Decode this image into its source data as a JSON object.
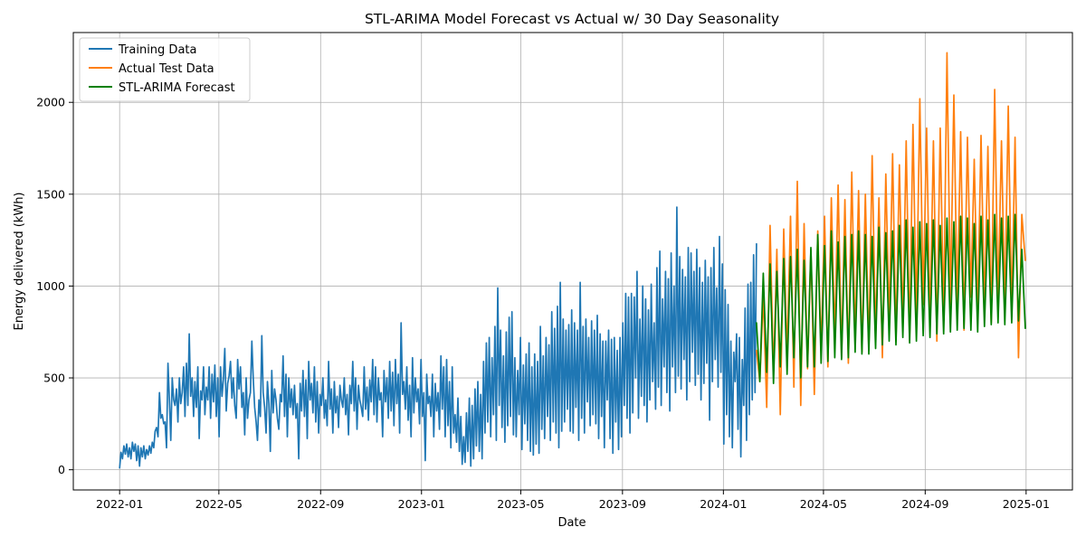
{
  "chart_data": {
    "type": "line",
    "title": "STL-ARIMA Model Forecast vs Actual w/ 30 Day Seasonality",
    "xlabel": "Date",
    "ylabel": "Energy delivered (kWh)",
    "x_type": "date",
    "xlim": [
      "2021-11-06",
      "2025-02-26"
    ],
    "ylim": [
      -110,
      2380
    ],
    "grid": true,
    "legend_position": "top-left",
    "x_ticks": [
      "2022-01",
      "2022-05",
      "2022-09",
      "2023-01",
      "2023-05",
      "2023-09",
      "2024-01",
      "2024-05",
      "2024-09",
      "2025-01"
    ],
    "y_ticks": [
      0,
      500,
      1000,
      1500,
      2000
    ],
    "series": [
      {
        "name": "Training Data",
        "color": "#1f77b4",
        "x_start": "2022-01-01",
        "x_end": "2024-02-10",
        "values": [
          10,
          95,
          60,
          130,
          85,
          140,
          70,
          120,
          60,
          150,
          100,
          140,
          50,
          130,
          20,
          120,
          70,
          130,
          60,
          110,
          80,
          130,
          90,
          150,
          120,
          210,
          230,
          180,
          420,
          280,
          300,
          250,
          260,
          120,
          580,
          380,
          160,
          500,
          380,
          350,
          440,
          260,
          500,
          360,
          420,
          560,
          290,
          580,
          350,
          740,
          400,
          500,
          290,
          480,
          340,
          560,
          170,
          430,
          380,
          560,
          300,
          450,
          380,
          560,
          280,
          520,
          370,
          570,
          290,
          500,
          180,
          560,
          400,
          490,
          660,
          320,
          470,
          510,
          590,
          390,
          500,
          350,
          280,
          600,
          440,
          560,
          340,
          420,
          190,
          500,
          280,
          380,
          420,
          700,
          500,
          340,
          260,
          160,
          380,
          290,
          730,
          420,
          340,
          200,
          480,
          360,
          100,
          540,
          310,
          440,
          380,
          280,
          220,
          410,
          370,
          620,
          290,
          520,
          180,
          500,
          340,
          440,
          300,
          460,
          280,
          360,
          60,
          470,
          320,
          540,
          290,
          490,
          170,
          590,
          380,
          470,
          310,
          560,
          260,
          480,
          200,
          410,
          350,
          500,
          280,
          380,
          240,
          590,
          330,
          440,
          200,
          480,
          310,
          400,
          230,
          460,
          380,
          340,
          500,
          300,
          410,
          190,
          460,
          360,
          590,
          320,
          500,
          220,
          460,
          380,
          340,
          290,
          560,
          330,
          450,
          270,
          490,
          370,
          600,
          300,
          560,
          260,
          500,
          380,
          420,
          180,
          540,
          370,
          500,
          280,
          590,
          320,
          530,
          240,
          600,
          360,
          520,
          200,
          800,
          410,
          480,
          330,
          560,
          270,
          460,
          180,
          610,
          310,
          500,
          370,
          440,
          250,
          600,
          290,
          420,
          50,
          520,
          360,
          400,
          290,
          520,
          180,
          470,
          320,
          420,
          220,
          620,
          330,
          560,
          180,
          600,
          240,
          480,
          120,
          560,
          200,
          300,
          150,
          390,
          100,
          290,
          30,
          180,
          40,
          310,
          100,
          390,
          20,
          350,
          60,
          440,
          130,
          480,
          100,
          410,
          60,
          590,
          200,
          690,
          260,
          720,
          180,
          610,
          300,
          780,
          160,
          990,
          350,
          760,
          230,
          620,
          150,
          750,
          240,
          830,
          290,
          860,
          190,
          610,
          180,
          540,
          300,
          720,
          110,
          570,
          250,
          630,
          160,
          690,
          100,
          560,
          80,
          630,
          140,
          590,
          90,
          780,
          220,
          620,
          170,
          720,
          290,
          680,
          160,
          860,
          260,
          770,
          200,
          890,
          120,
          1020,
          210,
          820,
          260,
          760,
          330,
          790,
          210,
          870,
          200,
          800,
          340,
          760,
          160,
          1020,
          280,
          780,
          200,
          820,
          370,
          720,
          240,
          810,
          300,
          760,
          250,
          840,
          170,
          740,
          290,
          700,
          120,
          700,
          380,
          760,
          170,
          710,
          90,
          720,
          260,
          650,
          110,
          720,
          180,
          800,
          350,
          960,
          280,
          940,
          200,
          960,
          310,
          940,
          500,
          1080,
          280,
          820,
          400,
          1000,
          350,
          930,
          260,
          870,
          380,
          1010,
          480,
          800,
          330,
          1100,
          450,
          1190,
          350,
          930,
          560,
          1080,
          420,
          1040,
          320,
          1180,
          560,
          1000,
          420,
          1430,
          510,
          1160,
          440,
          1090,
          600,
          1050,
          380,
          1210,
          480,
          1180,
          640,
          1080,
          460,
          1200,
          520,
          1100,
          380,
          1020,
          470,
          1140,
          580,
          1050,
          270,
          1100,
          480,
          1210,
          600,
          990,
          450,
          1270,
          530,
          1120,
          140,
          980,
          300,
          900,
          180,
          700,
          120,
          640,
          480,
          740,
          220,
          720,
          70,
          600,
          350,
          880,
          160,
          1010,
          300,
          1020,
          380,
          1170,
          420,
          1230
        ]
      },
      {
        "name": "Actual Test Data",
        "color": "#ff7f0e",
        "x_start": "2024-02-10",
        "x_end": "2024-12-31",
        "values": [
          650,
          480,
          950,
          340,
          1330,
          520,
          1200,
          300,
          1310,
          620,
          1380,
          450,
          1570,
          350,
          1340,
          550,
          1200,
          410,
          1300,
          650,
          1380,
          560,
          1480,
          720,
          1550,
          610,
          1470,
          580,
          1620,
          700,
          1520,
          640,
          1500,
          650,
          1710,
          720,
          1480,
          610,
          1610,
          800,
          1720,
          700,
          1660,
          780,
          1790,
          700,
          1880,
          820,
          2020,
          900,
          1860,
          780,
          1790,
          700,
          1860,
          820,
          2270,
          900,
          2040,
          860,
          1840,
          760,
          1810,
          940,
          1690,
          820,
          1820,
          870,
          1760,
          800,
          2070,
          900,
          1790,
          880,
          1980,
          840,
          1810,
          610,
          1390,
          1140
        ]
      },
      {
        "name": "STL-ARIMA Forecast",
        "color": "#008000",
        "x_start": "2024-02-10",
        "x_end": "2024-12-31",
        "values": [
          800,
          480,
          1070,
          530,
          1120,
          470,
          1080,
          560,
          1150,
          520,
          1160,
          610,
          1200,
          500,
          1140,
          560,
          1210,
          560,
          1280,
          580,
          1220,
          590,
          1300,
          610,
          1240,
          600,
          1270,
          610,
          1280,
          640,
          1300,
          630,
          1280,
          630,
          1270,
          660,
          1320,
          680,
          1290,
          700,
          1300,
          680,
          1330,
          720,
          1360,
          690,
          1320,
          700,
          1350,
          730,
          1340,
          720,
          1360,
          740,
          1330,
          740,
          1370,
          750,
          1350,
          760,
          1380,
          770,
          1370,
          760,
          1340,
          750,
          1380,
          780,
          1360,
          790,
          1390,
          800,
          1370,
          790,
          1380,
          800,
          1390,
          810,
          1200,
          770
        ]
      }
    ]
  }
}
